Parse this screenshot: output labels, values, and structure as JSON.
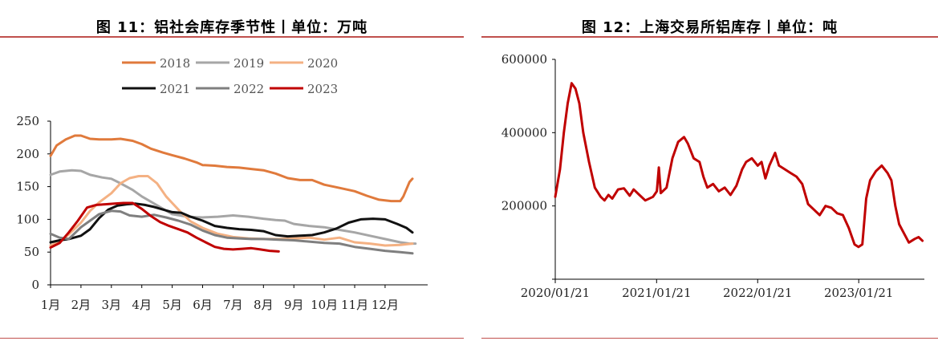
{
  "left": {
    "title": "图 11：铝社会库存季节性丨单位：万吨",
    "chart_data": {
      "type": "line",
      "title": "图 11：铝社会库存季节性丨单位：万吨",
      "xlabel": "",
      "ylabel": "",
      "ylim": [
        0,
        250
      ],
      "yticks": [
        "0",
        "50",
        "100",
        "150",
        "200",
        "250"
      ],
      "xticks": [
        "1月",
        "2月",
        "3月",
        "4月",
        "5月",
        "6月",
        "7月",
        "8月",
        "9月",
        "10月",
        "11月",
        "12月"
      ],
      "x_domain": [
        1,
        13.4
      ],
      "grid": false,
      "legend_position": "top",
      "series": [
        {
          "name": "2018",
          "color": "#e07a3c",
          "x": [
            1,
            1.2,
            1.5,
            1.8,
            2.0,
            2.3,
            2.6,
            3.0,
            3.3,
            3.7,
            4.0,
            4.3,
            4.7,
            5.0,
            5.4,
            5.8,
            6.0,
            6.4,
            6.8,
            7.2,
            7.6,
            8.0,
            8.4,
            8.8,
            9.2,
            9.6,
            10.0,
            10.5,
            11.0,
            11.4,
            11.8,
            12.2,
            12.5,
            12.6,
            12.8,
            12.9
          ],
          "y": [
            197,
            213,
            222,
            228,
            228,
            223,
            222,
            222,
            223,
            220,
            215,
            208,
            202,
            198,
            193,
            187,
            183,
            182,
            180,
            179,
            177,
            175,
            170,
            163,
            160,
            160,
            153,
            148,
            143,
            136,
            130,
            128,
            128,
            135,
            157,
            162
          ]
        },
        {
          "name": "2019",
          "color": "#a6a6a6",
          "x": [
            1,
            1.3,
            1.7,
            2.0,
            2.3,
            2.7,
            3.0,
            3.3,
            3.7,
            4.0,
            4.3,
            4.7,
            5.0,
            5.5,
            6.0,
            6.5,
            7.0,
            7.5,
            8.0,
            8.4,
            8.7,
            9.0,
            9.5,
            10.0,
            10.5,
            11.0,
            11.5,
            12.0,
            12.5,
            12.8,
            13.0
          ],
          "y": [
            168,
            173,
            175,
            174,
            168,
            164,
            162,
            155,
            145,
            135,
            127,
            116,
            108,
            104,
            103,
            104,
            106,
            104,
            101,
            99,
            98,
            93,
            90,
            88,
            84,
            80,
            75,
            70,
            65,
            63,
            63
          ]
        },
        {
          "name": "2020",
          "color": "#f4b183",
          "x": [
            1,
            1.3,
            1.6,
            2.0,
            2.3,
            2.6,
            3.0,
            3.3,
            3.6,
            3.9,
            4.2,
            4.5,
            4.8,
            5.0,
            5.3,
            5.6,
            6.0,
            6.5,
            7.0,
            7.5,
            8.0,
            8.5,
            9.0,
            9.5,
            10.0,
            10.5,
            11.0,
            11.5,
            12.0,
            12.5,
            12.9
          ],
          "y": [
            60,
            66,
            77,
            95,
            113,
            126,
            140,
            155,
            163,
            166,
            166,
            155,
            135,
            125,
            110,
            97,
            87,
            78,
            73,
            71,
            70,
            70,
            71,
            72,
            69,
            72,
            65,
            63,
            60,
            61,
            63
          ]
        },
        {
          "name": "2021",
          "color": "#111111",
          "x": [
            1,
            1.3,
            1.6,
            2.0,
            2.3,
            2.6,
            2.9,
            3.2,
            3.5,
            3.8,
            4.1,
            4.4,
            4.7,
            5.0,
            5.3,
            5.6,
            6.0,
            6.4,
            6.8,
            7.2,
            7.6,
            8.0,
            8.4,
            8.8,
            9.2,
            9.6,
            10.0,
            10.4,
            10.8,
            11.2,
            11.6,
            12.0,
            12.4,
            12.7,
            12.9
          ],
          "y": [
            65,
            68,
            70,
            75,
            85,
            102,
            115,
            121,
            123,
            124,
            122,
            119,
            115,
            111,
            110,
            104,
            98,
            90,
            87,
            85,
            84,
            82,
            76,
            74,
            75,
            76,
            80,
            86,
            95,
            100,
            101,
            100,
            93,
            87,
            80
          ]
        },
        {
          "name": "2022",
          "color": "#7f7f7f",
          "x": [
            1,
            1.3,
            1.6,
            2.0,
            2.3,
            2.6,
            3.0,
            3.3,
            3.6,
            4.0,
            4.4,
            4.8,
            5.2,
            5.6,
            6.0,
            6.4,
            6.8,
            7.2,
            7.6,
            8.0,
            8.5,
            9.0,
            9.5,
            10.0,
            10.5,
            11.0,
            11.5,
            12.0,
            12.5,
            12.9
          ],
          "y": [
            78,
            72,
            70,
            88,
            98,
            108,
            113,
            112,
            106,
            104,
            107,
            103,
            98,
            92,
            83,
            76,
            72,
            71,
            70,
            70,
            69,
            68,
            66,
            64,
            63,
            58,
            55,
            52,
            50,
            48
          ]
        },
        {
          "name": "2023",
          "color": "#c00000",
          "x": [
            1,
            1.3,
            1.6,
            1.9,
            2.2,
            2.5,
            2.8,
            3.1,
            3.4,
            3.7,
            4.0,
            4.3,
            4.6,
            4.9,
            5.2,
            5.5,
            5.8,
            6.1,
            6.4,
            6.7,
            7.0,
            7.3,
            7.6,
            7.9,
            8.2,
            8.5
          ],
          "y": [
            57,
            64,
            80,
            98,
            118,
            122,
            123,
            124,
            125,
            125,
            116,
            105,
            96,
            90,
            85,
            80,
            72,
            65,
            58,
            55,
            54,
            55,
            56,
            54,
            52,
            51
          ]
        }
      ]
    }
  },
  "right": {
    "title": "图 12：上海交易所铝库存丨单位：吨",
    "chart_data": {
      "type": "line",
      "title": "图 12：上海交易所铝库存丨单位：吨",
      "xlabel": "",
      "ylabel": "",
      "ylim": [
        0,
        600000
      ],
      "yticks": [
        "0",
        "200000",
        "400000",
        "600000"
      ],
      "xticks": [
        "2020/01/21",
        "2021/01/21",
        "2022/01/21",
        "2023/01/21"
      ],
      "x_domain": [
        "2020-01-21",
        "2023-09-15"
      ],
      "grid": false,
      "legend_position": "none",
      "series": [
        {
          "name": "",
          "color": "#c00000",
          "x": [
            "2020-01-21",
            "2020-02-07",
            "2020-02-21",
            "2020-03-06",
            "2020-03-20",
            "2020-04-03",
            "2020-04-17",
            "2020-05-01",
            "2020-05-22",
            "2020-06-12",
            "2020-07-03",
            "2020-07-17",
            "2020-07-31",
            "2020-08-14",
            "2020-09-04",
            "2020-09-25",
            "2020-10-16",
            "2020-10-30",
            "2020-11-20",
            "2020-12-11",
            "2021-01-08",
            "2021-01-22",
            "2021-01-29",
            "2021-02-05",
            "2021-02-26",
            "2021-03-19",
            "2021-04-09",
            "2021-04-30",
            "2021-05-14",
            "2021-06-04",
            "2021-06-25",
            "2021-07-09",
            "2021-07-23",
            "2021-08-13",
            "2021-09-03",
            "2021-09-24",
            "2021-10-15",
            "2021-11-05",
            "2021-11-26",
            "2021-12-10",
            "2021-12-31",
            "2022-01-21",
            "2022-02-04",
            "2022-02-18",
            "2022-03-04",
            "2022-03-25",
            "2022-04-08",
            "2022-04-29",
            "2022-05-20",
            "2022-06-10",
            "2022-07-01",
            "2022-07-22",
            "2022-08-12",
            "2022-09-02",
            "2022-09-23",
            "2022-10-14",
            "2022-11-04",
            "2022-11-25",
            "2022-12-16",
            "2023-01-06",
            "2023-01-20",
            "2023-02-03",
            "2023-02-17",
            "2023-03-03",
            "2023-03-24",
            "2023-04-14",
            "2023-05-05",
            "2023-05-19",
            "2023-06-02",
            "2023-06-16",
            "2023-06-30",
            "2023-07-21",
            "2023-08-11",
            "2023-08-25",
            "2023-09-08"
          ],
          "y": [
            225000,
            300000,
            400000,
            480000,
            535000,
            520000,
            480000,
            400000,
            320000,
            250000,
            225000,
            215000,
            230000,
            220000,
            245000,
            248000,
            228000,
            245000,
            230000,
            215000,
            225000,
            240000,
            305000,
            235000,
            250000,
            330000,
            375000,
            388000,
            370000,
            330000,
            320000,
            280000,
            250000,
            260000,
            240000,
            250000,
            230000,
            255000,
            300000,
            320000,
            330000,
            310000,
            320000,
            275000,
            310000,
            345000,
            310000,
            300000,
            290000,
            280000,
            260000,
            205000,
            190000,
            175000,
            200000,
            195000,
            180000,
            175000,
            140000,
            95000,
            88000,
            95000,
            220000,
            270000,
            295000,
            310000,
            290000,
            270000,
            200000,
            150000,
            130000,
            100000,
            110000,
            115000,
            105000
          ]
        }
      ]
    }
  }
}
